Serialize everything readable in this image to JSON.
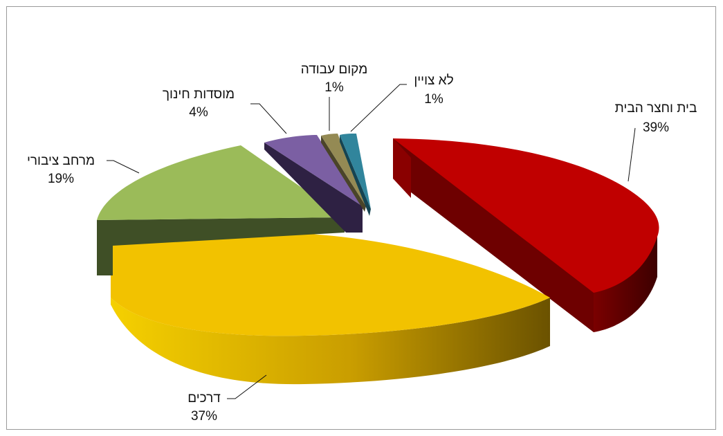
{
  "chart_data": {
    "type": "pie",
    "variant": "exploded-3d",
    "slices": [
      {
        "label": "בית וחצר הבית",
        "value": 39,
        "value_label": "39%",
        "color": "#c00000",
        "side": "#5c0000"
      },
      {
        "label": "דרכים",
        "value": 37,
        "value_label": "37%",
        "color": "#f2c200",
        "side": "#8a6a00"
      },
      {
        "label": "מרחב ציבורי",
        "value": 19,
        "value_label": "19%",
        "color": "#9bbb59",
        "side": "#3f4f26"
      },
      {
        "label": "מוסדות חינוך",
        "value": 4,
        "value_label": "4%",
        "color": "#7b5fa3",
        "side": "#2e2143"
      },
      {
        "label": "מקום עבודה",
        "value": 1,
        "value_label": "1%",
        "color": "#948a54",
        "side": "#4a4429"
      },
      {
        "label": "לא צויין",
        "value": 1,
        "value_label": "1%",
        "color": "#31859c",
        "side": "#154452"
      }
    ],
    "legend": "none",
    "data_labels": "outside-with-leader-lines"
  }
}
